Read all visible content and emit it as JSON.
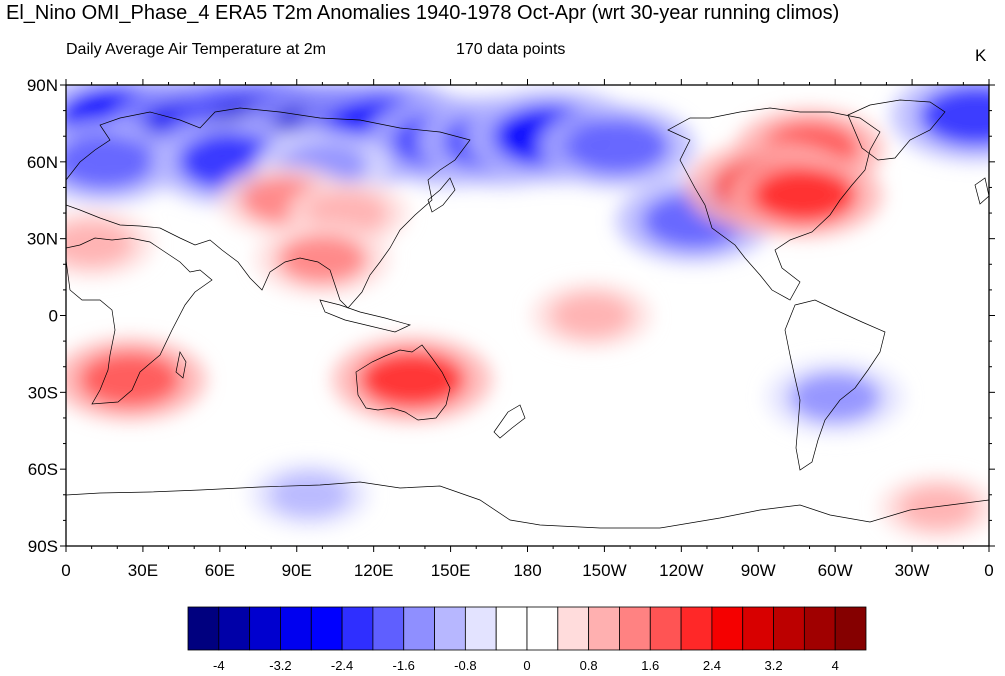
{
  "title": "El_Nino OMI_Phase_4 ERA5 T2m Anomalies 1940-1978 Oct-Apr (wrt 30-year running climos)",
  "subtitle_left": "Daily Average Air Temperature at 2m",
  "subtitle_mid": "170 data points",
  "units": "K",
  "map": {
    "projection": "cylindrical equidistant",
    "lon_range": [
      0,
      360
    ],
    "lat_range": [
      -90,
      90
    ],
    "lat_ticks": [
      {
        "value": 90,
        "label": "90N"
      },
      {
        "value": 60,
        "label": "60N"
      },
      {
        "value": 30,
        "label": "30N"
      },
      {
        "value": 0,
        "label": "0"
      },
      {
        "value": -30,
        "label": "30S"
      },
      {
        "value": -60,
        "label": "60S"
      },
      {
        "value": -90,
        "label": "90S"
      }
    ],
    "lon_ticks": [
      {
        "value": 0,
        "label": "0"
      },
      {
        "value": 30,
        "label": "30E"
      },
      {
        "value": 60,
        "label": "60E"
      },
      {
        "value": 90,
        "label": "90E"
      },
      {
        "value": 120,
        "label": "120E"
      },
      {
        "value": 150,
        "label": "150E"
      },
      {
        "value": 180,
        "label": "180"
      },
      {
        "value": 210,
        "label": "150W"
      },
      {
        "value": 240,
        "label": "120W"
      },
      {
        "value": 270,
        "label": "90W"
      },
      {
        "value": 300,
        "label": "60W"
      },
      {
        "value": 330,
        "label": "30W"
      },
      {
        "value": 360,
        "label": "0"
      }
    ]
  },
  "colorbar": {
    "colors": [
      "#00007f",
      "#0000a8",
      "#0000cf",
      "#0000f0",
      "#0000ff",
      "#2f2fff",
      "#5f5fff",
      "#8f8fff",
      "#b7b7ff",
      "#e3e3ff",
      "#ffffff",
      "#ffffff",
      "#ffdcdc",
      "#ffb0b0",
      "#ff8282",
      "#ff5454",
      "#ff2828",
      "#f50000",
      "#d80000",
      "#bc0000",
      "#a00000",
      "#850000"
    ],
    "labels": [
      {
        "value": -4,
        "label": "-4"
      },
      {
        "value": -3.2,
        "label": "-3.2"
      },
      {
        "value": -2.4,
        "label": "-2.4"
      },
      {
        "value": -1.6,
        "label": "-1.6"
      },
      {
        "value": -0.8,
        "label": "-0.8"
      },
      {
        "value": 0,
        "label": "0"
      },
      {
        "value": 0.8,
        "label": "0.8"
      },
      {
        "value": 1.6,
        "label": "1.6"
      },
      {
        "value": 2.4,
        "label": "2.4"
      },
      {
        "value": 3.2,
        "label": "3.2"
      },
      {
        "value": 4,
        "label": "4"
      }
    ],
    "min": -4.4,
    "max": 4.4
  },
  "anomalies": [
    {
      "lon": 20,
      "lat": 77,
      "value": -2.6
    },
    {
      "lon": 55,
      "lat": 72,
      "value": -3.2
    },
    {
      "lon": 80,
      "lat": 70,
      "value": -3.6
    },
    {
      "lon": 105,
      "lat": 70,
      "value": -3.3
    },
    {
      "lon": 125,
      "lat": 72,
      "value": -2.8
    },
    {
      "lon": 150,
      "lat": 68,
      "value": -2.4
    },
    {
      "lon": 170,
      "lat": 68,
      "value": -2.4
    },
    {
      "lon": 190,
      "lat": 70,
      "value": -2.6
    },
    {
      "lon": 215,
      "lat": 66,
      "value": -2.0
    },
    {
      "lon": 15,
      "lat": 60,
      "value": -1.9
    },
    {
      "lon": 65,
      "lat": 60,
      "value": -2.2
    },
    {
      "lon": 100,
      "lat": 58,
      "value": -1.4
    },
    {
      "lon": 355,
      "lat": 78,
      "value": -2.4
    },
    {
      "lon": 245,
      "lat": 37,
      "value": -2.0
    },
    {
      "lon": 300,
      "lat": -32,
      "value": -1.5
    },
    {
      "lon": 95,
      "lat": -70,
      "value": -1.0
    },
    {
      "lon": 290,
      "lat": 65,
      "value": 1.8
    },
    {
      "lon": 275,
      "lat": 50,
      "value": 2.4
    },
    {
      "lon": 288,
      "lat": 47,
      "value": 2.0
    },
    {
      "lon": 85,
      "lat": 45,
      "value": 1.3
    },
    {
      "lon": 110,
      "lat": 40,
      "value": 1.0
    },
    {
      "lon": 10,
      "lat": 28,
      "value": 1.1
    },
    {
      "lon": 100,
      "lat": 22,
      "value": 1.4
    },
    {
      "lon": 205,
      "lat": 0,
      "value": 1.0
    },
    {
      "lon": 25,
      "lat": -25,
      "value": 1.9
    },
    {
      "lon": 135,
      "lat": -25,
      "value": 2.1
    },
    {
      "lon": 340,
      "lat": -75,
      "value": 0.9
    }
  ]
}
